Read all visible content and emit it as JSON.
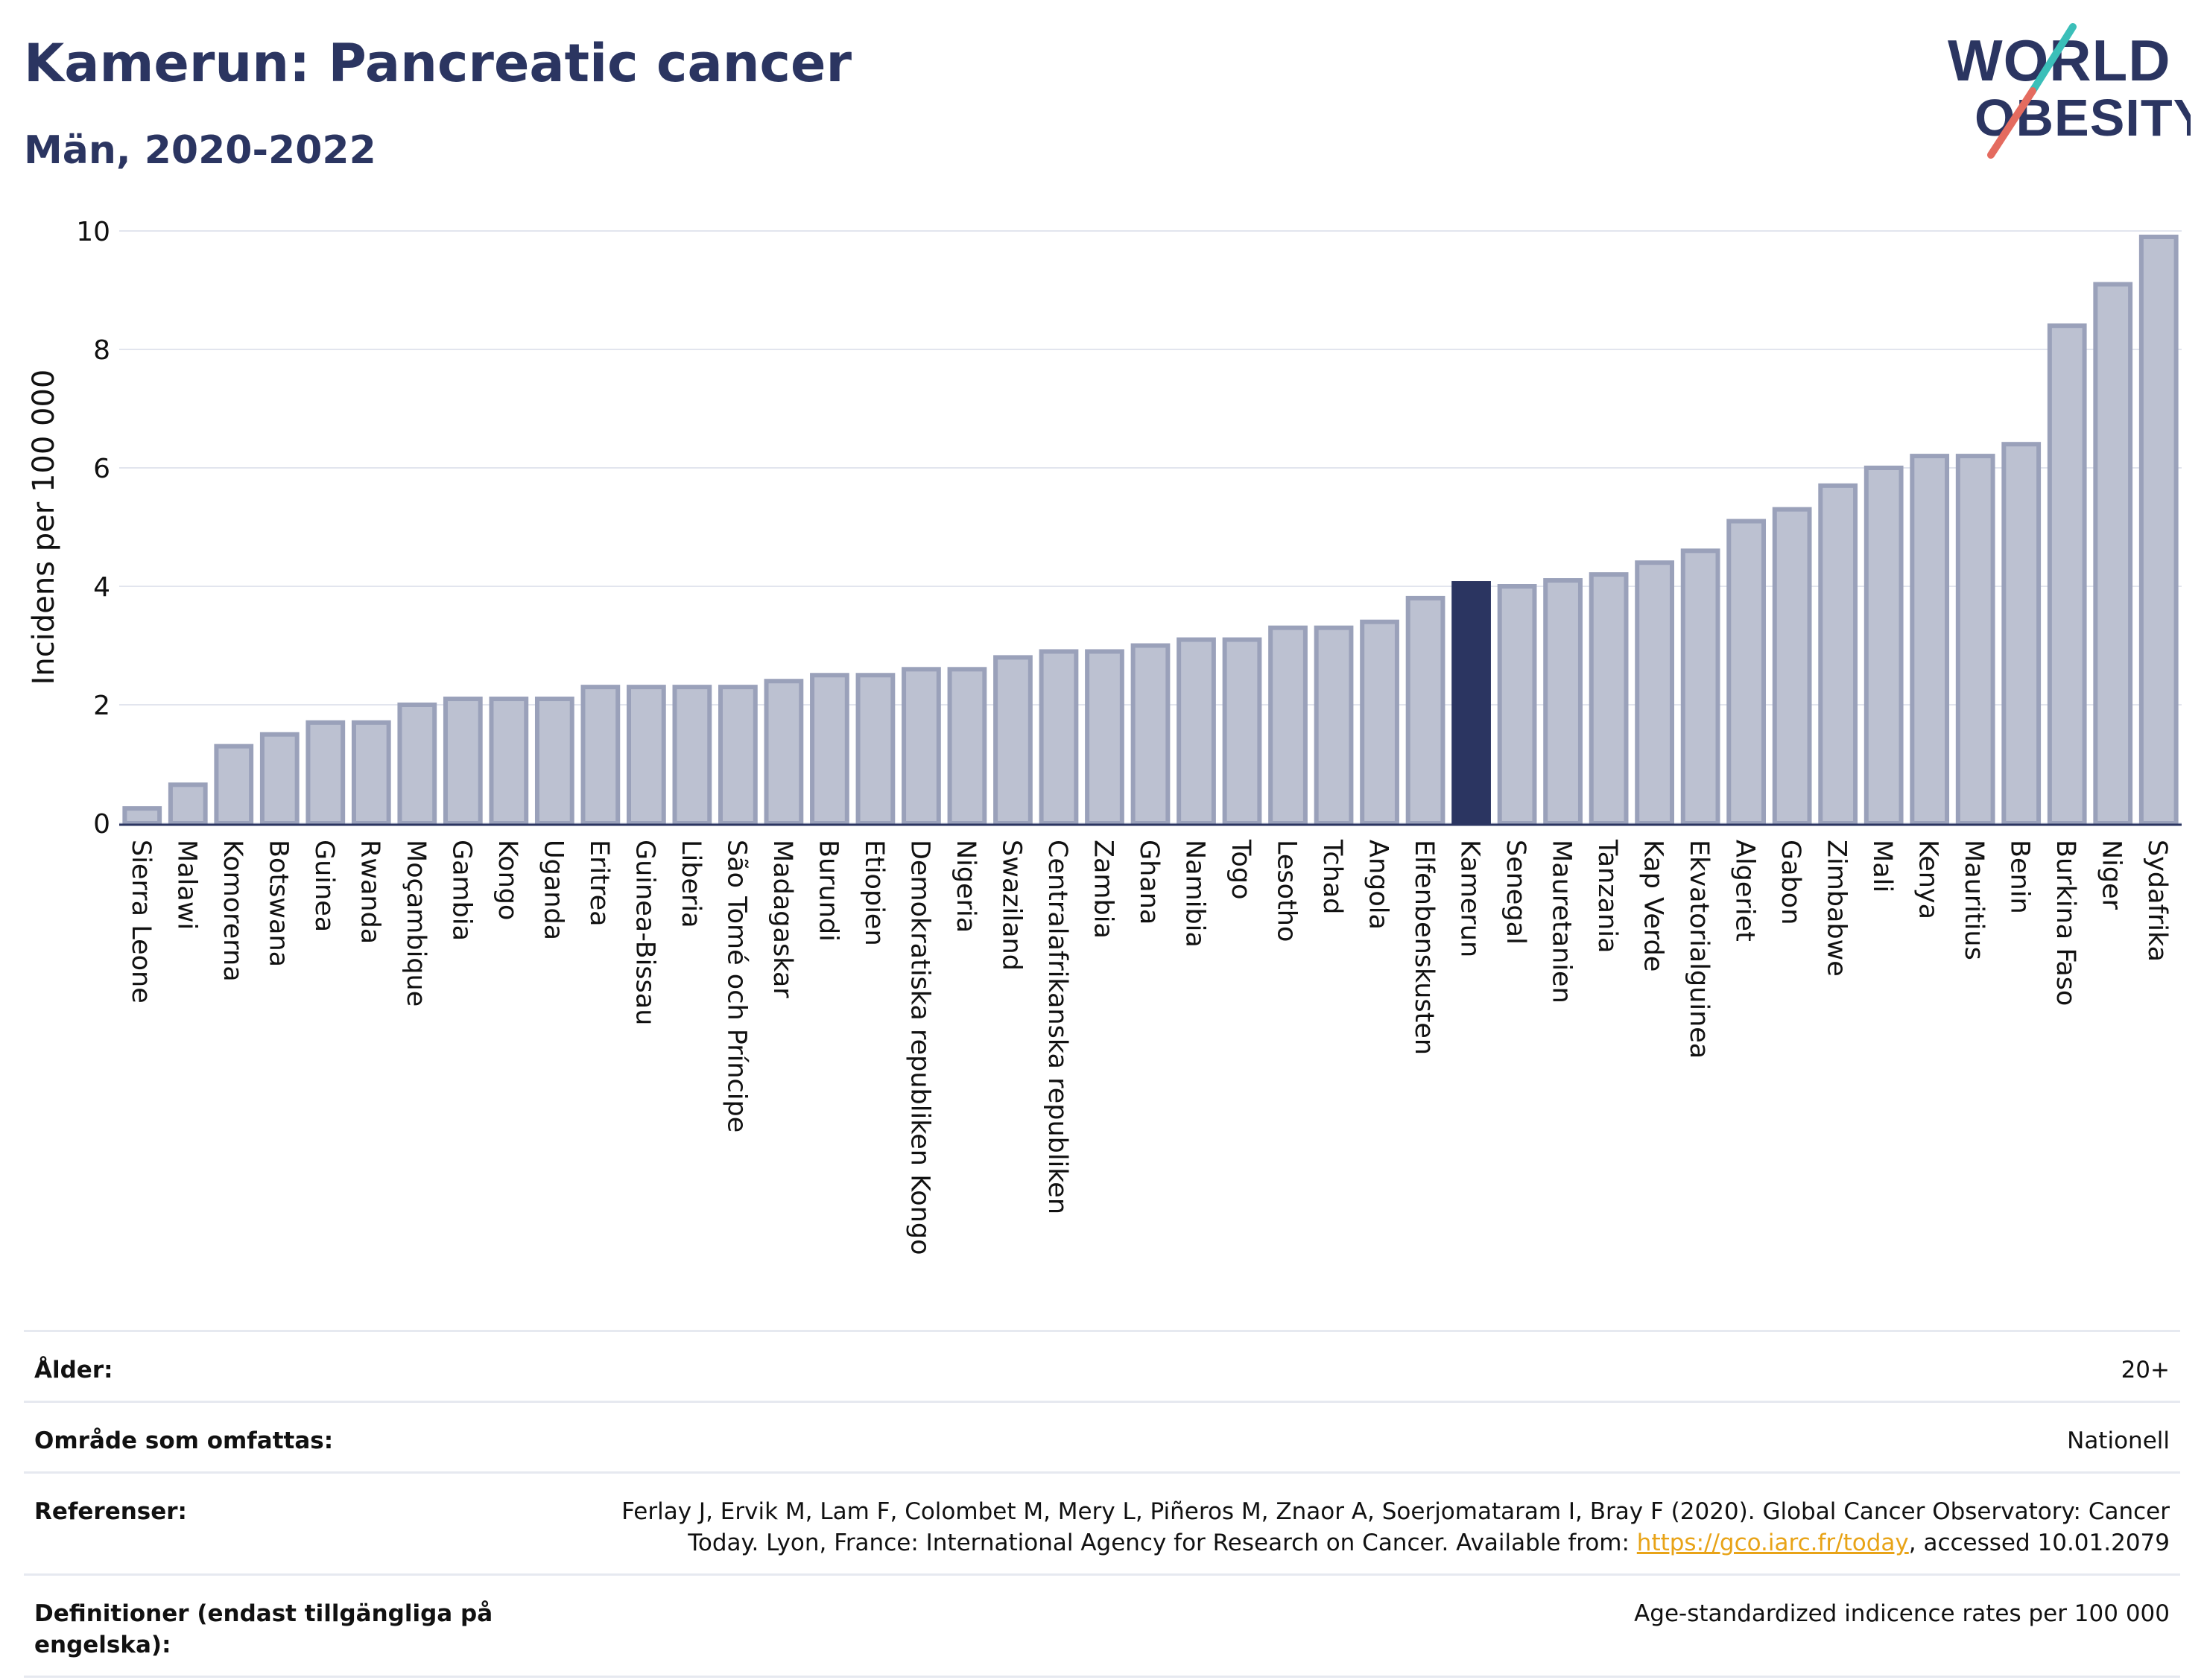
{
  "header": {
    "title": "Kamerun: Pancreatic cancer",
    "subtitle": "Män, 2020-2022"
  },
  "logo": {
    "line1": "WORLD",
    "line2": "OBESITY"
  },
  "colors": {
    "bar": "#bcc1d1",
    "bar_stroke": "#9aa1ba",
    "highlight": "#2b3561",
    "grid": "#e2e5ee",
    "axis": "#2b3561",
    "text": "#111111",
    "logo_text": "#2b3561",
    "logo_teal": "#3bbfb9",
    "logo_coral": "#e46b5f"
  },
  "chart_data": {
    "type": "bar",
    "ylabel": "Incidens per 100 000",
    "ylim": [
      0,
      10
    ],
    "yticks": [
      0,
      2,
      4,
      6,
      8,
      10
    ],
    "grid": true,
    "highlight": "Kamerun",
    "categories": [
      "Sierra Leone",
      "Malawi",
      "Komorerna",
      "Botswana",
      "Guinea",
      "Rwanda",
      "Moçambique",
      "Gambia",
      "Kongo",
      "Uganda",
      "Eritrea",
      "Guinea-Bissau",
      "Liberia",
      "São Tomé och Príncipe",
      "Madagaskar",
      "Burundi",
      "Etiopien",
      "Demokratiska republiken Kongo",
      "Nigeria",
      "Swaziland",
      "Centralafrikanska republiken",
      "Zambia",
      "Ghana",
      "Namibia",
      "Togo",
      "Lesotho",
      "Tchad",
      "Angola",
      "Elfenbenskusten",
      "Kamerun",
      "Senegal",
      "Mauretanien",
      "Tanzania",
      "Kap Verde",
      "Ekvatorialguinea",
      "Algeriet",
      "Gabon",
      "Zimbabwe",
      "Mali",
      "Kenya",
      "Mauritius",
      "Benin",
      "Burkina Faso",
      "Niger",
      "Sydafrika"
    ],
    "values": [
      0.25,
      0.65,
      1.3,
      1.5,
      1.7,
      1.7,
      2.0,
      2.1,
      2.1,
      2.1,
      2.3,
      2.3,
      2.3,
      2.3,
      2.4,
      2.5,
      2.5,
      2.6,
      2.6,
      2.8,
      2.9,
      2.9,
      3.0,
      3.1,
      3.1,
      3.3,
      3.3,
      3.4,
      3.8,
      4.05,
      4.0,
      4.1,
      4.2,
      4.4,
      4.6,
      5.1,
      5.3,
      5.7,
      6.0,
      6.2,
      6.2,
      6.4,
      8.4,
      9.1,
      9.9
    ]
  },
  "meta": [
    {
      "label": "Ålder:",
      "value": "20+"
    },
    {
      "label": "Område som omfattas:",
      "value": "Nationell"
    },
    {
      "label": "Referenser:",
      "value_line1": "Ferlay J, Ervik M, Lam F, Colombet M, Mery L, Piñeros M, Znaor A, Soerjomataram I, Bray F (2020). Global Cancer Observatory: Cancer",
      "value_line2_prefix": "Today. Lyon, France: International Agency for Research on Cancer. Available from: ",
      "link": "https://gco.iarc.fr/today",
      "value_line2_suffix": ", accessed 10.01.2079"
    },
    {
      "label": "Definitioner (endast tillgängliga på engelska):",
      "value": "Age-standardized indicence rates per 100 000"
    }
  ]
}
